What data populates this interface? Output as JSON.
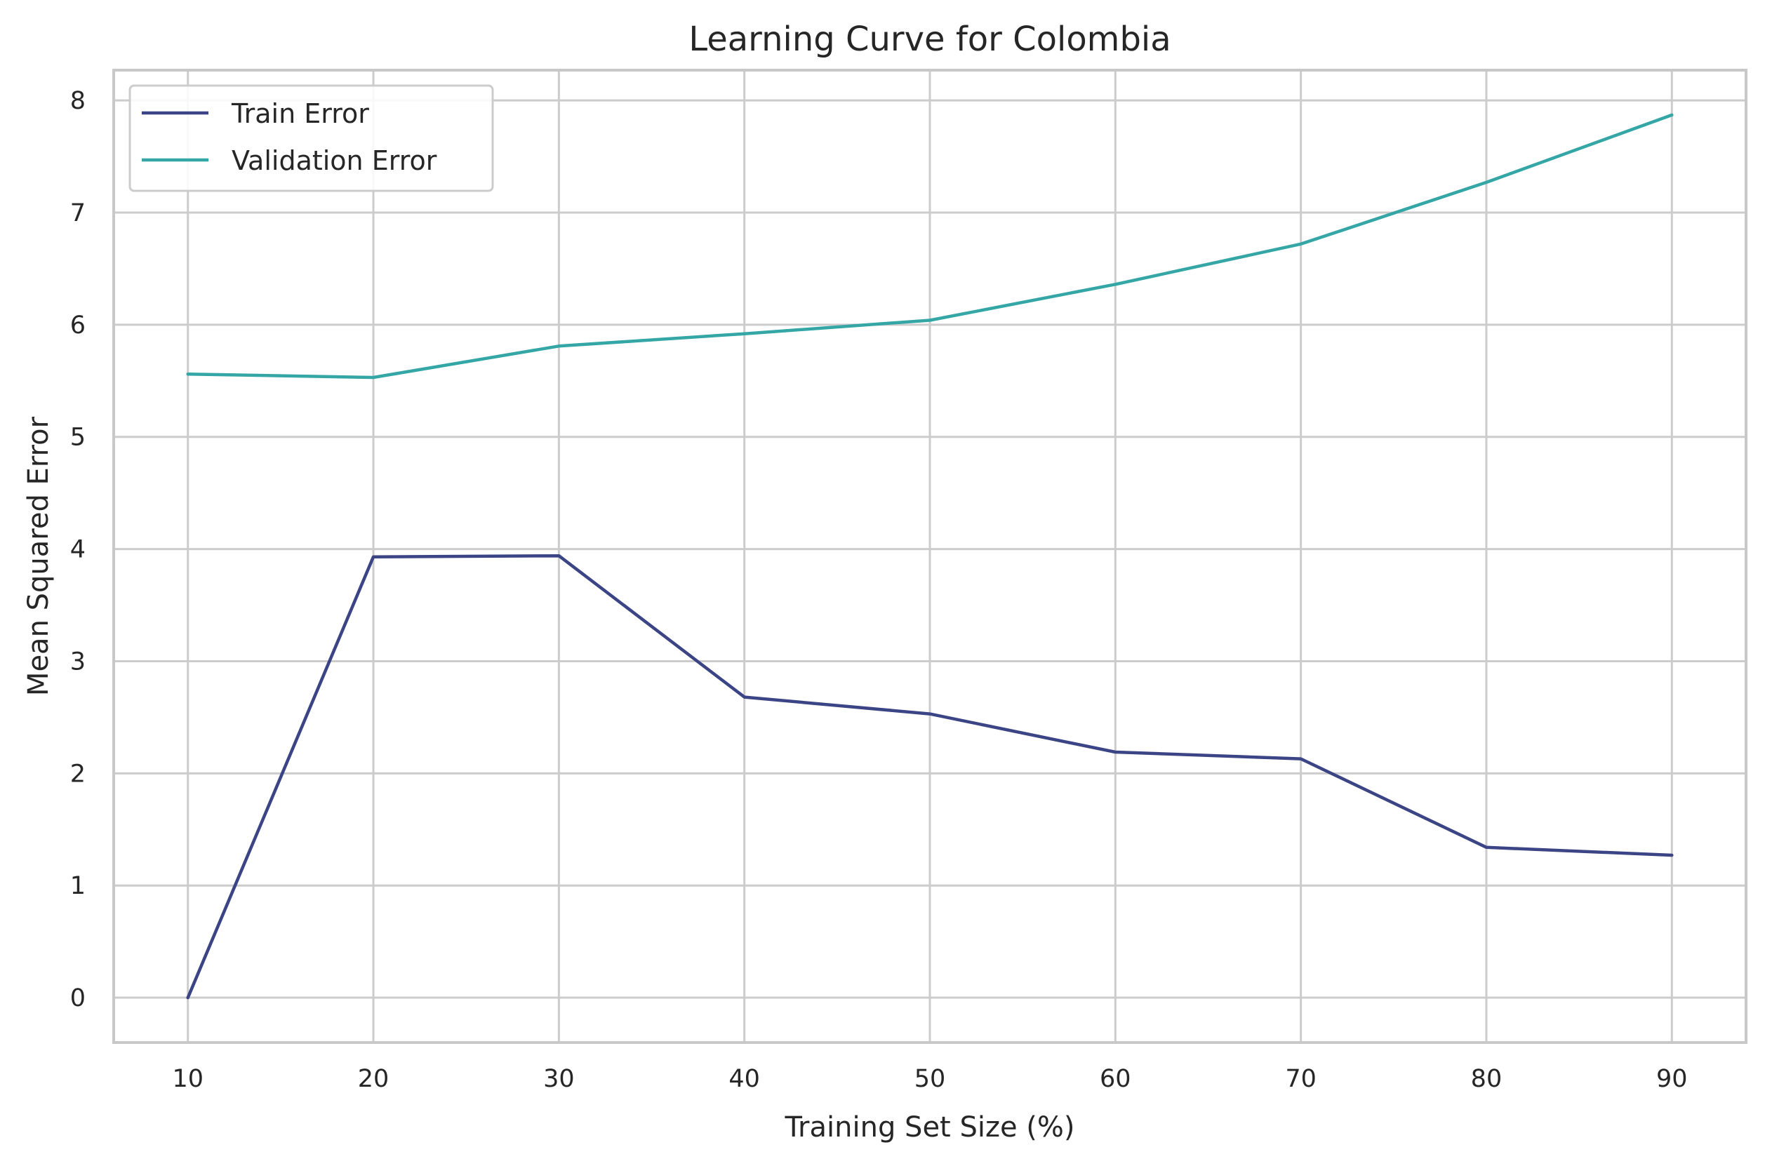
{
  "chart_data": {
    "type": "line",
    "title": "Learning Curve for Colombia",
    "xlabel": "Training Set Size (%)",
    "ylabel": "Mean Squared Error",
    "x": [
      10,
      20,
      30,
      40,
      50,
      60,
      70,
      80,
      90
    ],
    "xticks": [
      10,
      20,
      30,
      40,
      50,
      60,
      70,
      80,
      90
    ],
    "yticks": [
      0,
      1,
      2,
      3,
      4,
      5,
      6,
      7,
      8
    ],
    "xlim": [
      6,
      94
    ],
    "ylim": [
      -0.4,
      8.27
    ],
    "grid": true,
    "legend_position": "top-left",
    "series": [
      {
        "name": "Train Error",
        "color": "#3b4484",
        "values": [
          0.0,
          3.93,
          3.94,
          2.68,
          2.53,
          2.19,
          2.13,
          1.34,
          1.27
        ]
      },
      {
        "name": "Validation Error",
        "color": "#35a6a6",
        "values": [
          5.56,
          5.53,
          5.81,
          5.92,
          6.04,
          6.36,
          6.72,
          7.27,
          7.87
        ]
      }
    ]
  }
}
